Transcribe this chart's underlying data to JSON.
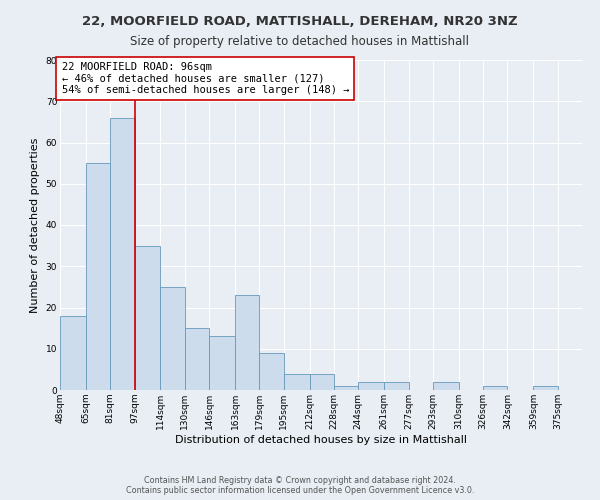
{
  "title": "22, MOORFIELD ROAD, MATTISHALL, DEREHAM, NR20 3NZ",
  "subtitle": "Size of property relative to detached houses in Mattishall",
  "xlabel": "Distribution of detached houses by size in Mattishall",
  "ylabel": "Number of detached properties",
  "bin_labels": [
    "48sqm",
    "65sqm",
    "81sqm",
    "97sqm",
    "114sqm",
    "130sqm",
    "146sqm",
    "163sqm",
    "179sqm",
    "195sqm",
    "212sqm",
    "228sqm",
    "244sqm",
    "261sqm",
    "277sqm",
    "293sqm",
    "310sqm",
    "326sqm",
    "342sqm",
    "359sqm",
    "375sqm"
  ],
  "bin_edges": [
    48,
    65,
    81,
    97,
    114,
    130,
    146,
    163,
    179,
    195,
    212,
    228,
    244,
    261,
    277,
    293,
    310,
    326,
    342,
    359,
    375
  ],
  "bar_heights": [
    18,
    55,
    66,
    35,
    25,
    15,
    13,
    23,
    9,
    4,
    4,
    1,
    2,
    2,
    0,
    2,
    0,
    1,
    0,
    1,
    0
  ],
  "bar_color": "#ccdcec",
  "bar_edgecolor": "#6699bb",
  "vline_x": 97,
  "vline_color": "#cc0000",
  "annotation_text": "22 MOORFIELD ROAD: 96sqm\n← 46% of detached houses are smaller (127)\n54% of semi-detached houses are larger (148) →",
  "annotation_box_edgecolor": "#cc0000",
  "annotation_box_facecolor": "#ffffff",
  "ylim": [
    0,
    80
  ],
  "yticks": [
    0,
    10,
    20,
    30,
    40,
    50,
    60,
    70,
    80
  ],
  "background_color": "#e8eef4",
  "plot_background_color": "#e8eef4",
  "grid_color": "#ffffff",
  "footer_line1": "Contains HM Land Registry data © Crown copyright and database right 2024.",
  "footer_line2": "Contains public sector information licensed under the Open Government Licence v3.0.",
  "title_fontsize": 9.5,
  "subtitle_fontsize": 8.5,
  "xlabel_fontsize": 8,
  "ylabel_fontsize": 8,
  "tick_fontsize": 6.5,
  "annotation_fontsize": 7.5,
  "footer_fontsize": 5.8
}
